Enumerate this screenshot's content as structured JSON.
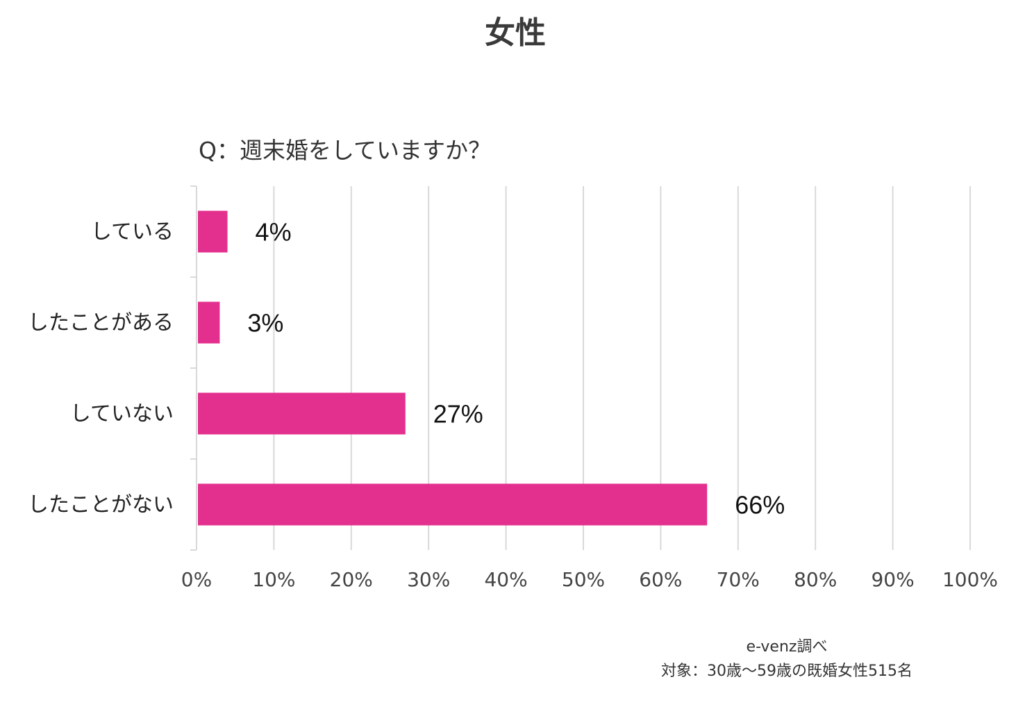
{
  "page": {
    "title": "女性"
  },
  "chart_data": {
    "type": "bar",
    "orientation": "horizontal",
    "title": "Q：週末婚をしていますか？",
    "categories": [
      "している",
      "したことがある",
      "していない",
      "したことがない"
    ],
    "values": [
      4,
      3,
      27,
      66
    ],
    "data_labels": [
      "4%",
      "3%",
      "27%",
      "66%"
    ],
    "xlim": [
      0,
      100
    ],
    "x_ticks": [
      "0%",
      "10%",
      "20%",
      "30%",
      "40%",
      "50%",
      "60%",
      "70%",
      "80%",
      "90%",
      "100%"
    ],
    "grid": true,
    "bar_color": "#e3308e",
    "grid_color": "#d9d9d9"
  },
  "source": {
    "line1": "e-venz調べ",
    "line2": "対象：30歳〜59歳の既婚女性515名"
  }
}
